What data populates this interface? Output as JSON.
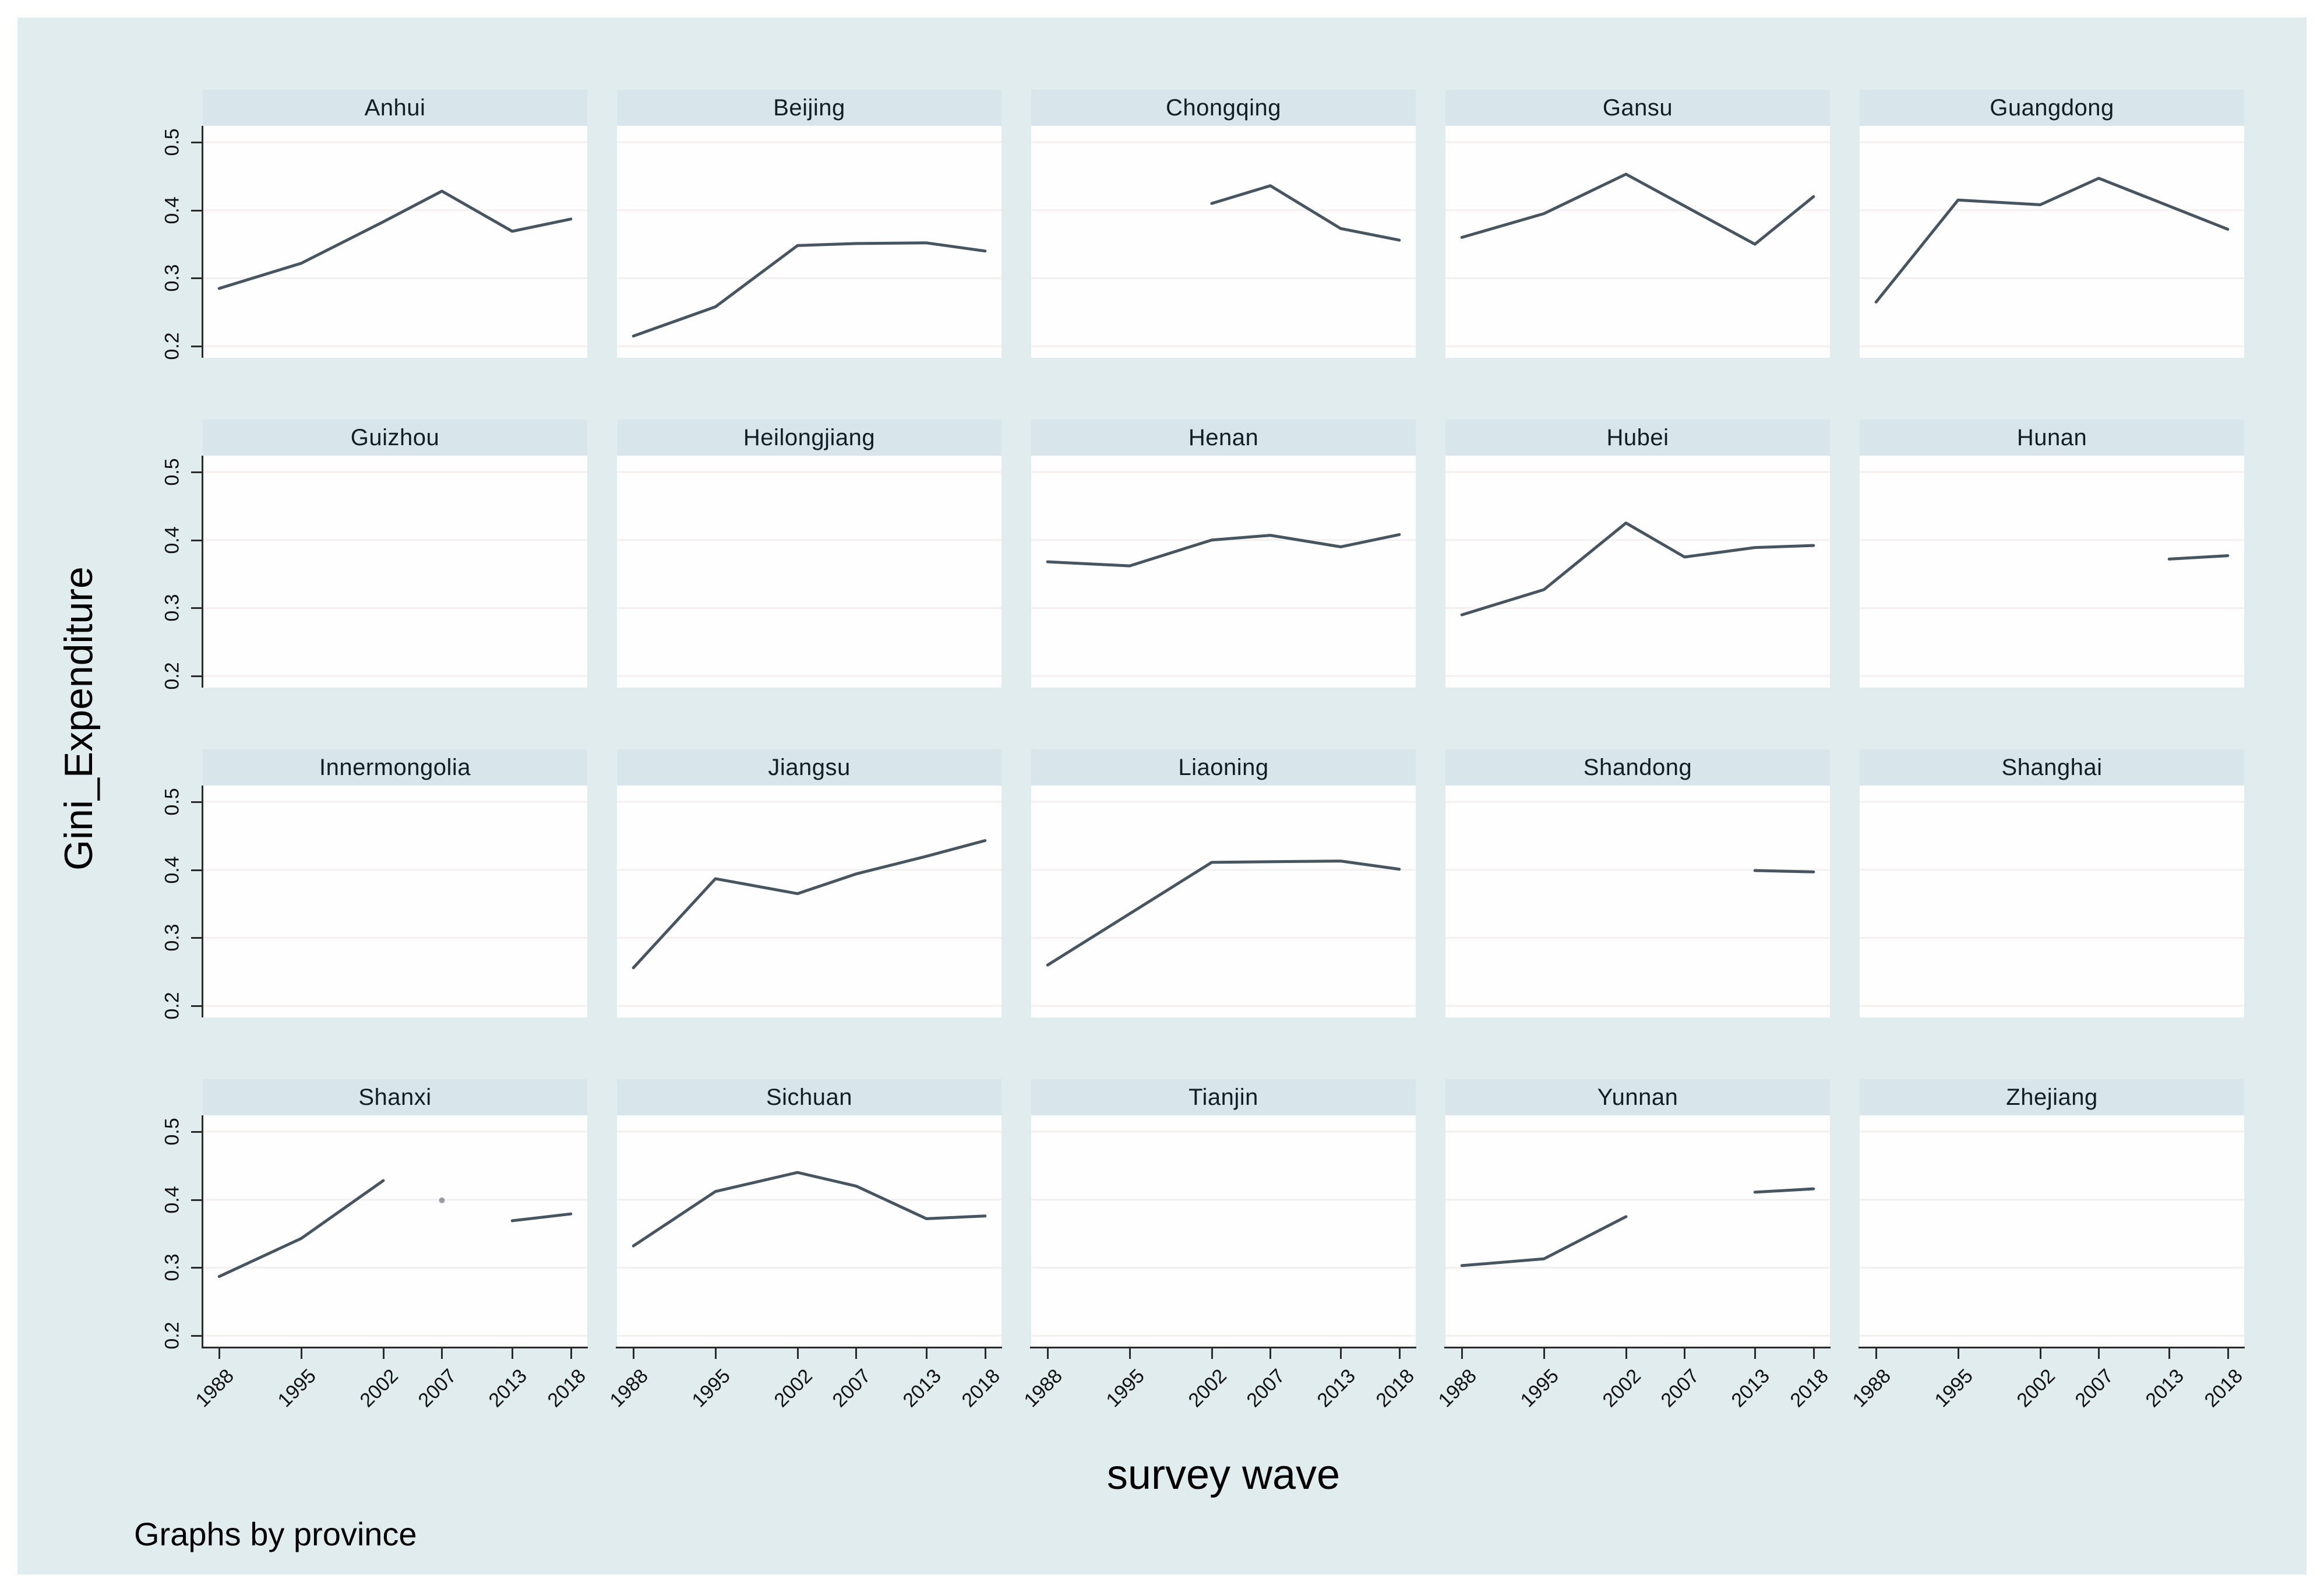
{
  "chart_data": {
    "type": "line",
    "title": "",
    "ylabel": "Gini_Expenditure",
    "xlabel": "survey wave",
    "note": "Graphs by province",
    "x_ticks": [
      1988,
      1995,
      2002,
      2007,
      2013,
      2018
    ],
    "x_tick_labels": [
      "1988",
      "1995",
      "2002",
      "2007",
      "2013",
      "2018"
    ],
    "y_ticks": [
      0.2,
      0.3,
      0.4,
      0.5
    ],
    "y_tick_labels": [
      "0.2",
      "0.3",
      "0.4",
      "0.5"
    ],
    "xlim": [
      1986.6,
      2019.4
    ],
    "ylim": [
      0.183,
      0.524
    ],
    "grid": "horizontal-only",
    "layout": {
      "rows": 4,
      "cols": 5,
      "shared_y_axis_left_column": true,
      "shared_x_axis_bottom_row": true
    },
    "series": [
      {
        "name": "Anhui",
        "segments": [
          [
            [
              1988,
              0.285
            ],
            [
              1995,
              0.322
            ],
            [
              2002,
              0.383
            ],
            [
              2007,
              0.428
            ],
            [
              2013,
              0.369
            ],
            [
              2018,
              0.387
            ]
          ]
        ]
      },
      {
        "name": "Beijing",
        "segments": [
          [
            [
              1988,
              0.215
            ],
            [
              1995,
              0.258
            ],
            [
              2002,
              0.348
            ],
            [
              2007,
              0.351
            ],
            [
              2013,
              0.352
            ],
            [
              2018,
              0.34
            ]
          ]
        ]
      },
      {
        "name": "Chongqing",
        "segments": [
          [
            [
              2002,
              0.41
            ],
            [
              2007,
              0.436
            ],
            [
              2013,
              0.373
            ],
            [
              2018,
              0.356
            ]
          ]
        ]
      },
      {
        "name": "Gansu",
        "segments": [
          [
            [
              1988,
              0.36
            ],
            [
              1995,
              0.395
            ],
            [
              2002,
              0.453
            ],
            [
              2013,
              0.35
            ],
            [
              2018,
              0.42
            ]
          ]
        ]
      },
      {
        "name": "Guangdong",
        "segments": [
          [
            [
              1988,
              0.265
            ],
            [
              1995,
              0.415
            ],
            [
              2002,
              0.408
            ],
            [
              2007,
              0.447
            ],
            [
              2018,
              0.372
            ]
          ]
        ]
      },
      {
        "name": "Guizhou",
        "segments": []
      },
      {
        "name": "Heilongjiang",
        "segments": []
      },
      {
        "name": "Henan",
        "segments": [
          [
            [
              1988,
              0.368
            ],
            [
              1995,
              0.362
            ],
            [
              2002,
              0.4
            ],
            [
              2007,
              0.407
            ],
            [
              2013,
              0.39
            ],
            [
              2018,
              0.408
            ]
          ]
        ]
      },
      {
        "name": "Hubei",
        "segments": [
          [
            [
              1988,
              0.29
            ],
            [
              1995,
              0.327
            ],
            [
              2002,
              0.425
            ],
            [
              2007,
              0.375
            ],
            [
              2013,
              0.389
            ],
            [
              2018,
              0.392
            ]
          ]
        ]
      },
      {
        "name": "Hunan",
        "segments": [
          [
            [
              2013,
              0.372
            ],
            [
              2018,
              0.377
            ]
          ]
        ]
      },
      {
        "name": "Innermongolia",
        "segments": []
      },
      {
        "name": "Jiangsu",
        "segments": [
          [
            [
              1988,
              0.256
            ],
            [
              1995,
              0.387
            ],
            [
              2002,
              0.365
            ],
            [
              2007,
              0.394
            ],
            [
              2013,
              0.42
            ],
            [
              2018,
              0.443
            ]
          ]
        ]
      },
      {
        "name": "Liaoning",
        "segments": [
          [
            [
              1988,
              0.26
            ],
            [
              2002,
              0.411
            ],
            [
              2007,
              0.412
            ],
            [
              2013,
              0.413
            ],
            [
              2018,
              0.401
            ]
          ]
        ]
      },
      {
        "name": "Shandong",
        "segments": [
          [
            [
              2013,
              0.399
            ],
            [
              2018,
              0.397
            ]
          ]
        ]
      },
      {
        "name": "Shanghai",
        "segments": []
      },
      {
        "name": "Shanxi",
        "segments": [
          [
            [
              1988,
              0.287
            ],
            [
              1995,
              0.343
            ],
            [
              2002,
              0.428
            ]
          ],
          [
            [
              2007,
              0.399
            ]
          ],
          [
            [
              2013,
              0.369
            ],
            [
              2018,
              0.379
            ]
          ]
        ]
      },
      {
        "name": "Sichuan",
        "segments": [
          [
            [
              1988,
              0.332
            ],
            [
              1995,
              0.412
            ],
            [
              2002,
              0.44
            ],
            [
              2007,
              0.42
            ],
            [
              2013,
              0.372
            ],
            [
              2018,
              0.376
            ]
          ]
        ]
      },
      {
        "name": "Tianjin",
        "segments": []
      },
      {
        "name": "Yunnan",
        "segments": [
          [
            [
              1988,
              0.303
            ],
            [
              1995,
              0.313
            ],
            [
              2002,
              0.375
            ]
          ],
          [
            [
              2013,
              0.411
            ],
            [
              2018,
              0.416
            ]
          ]
        ]
      },
      {
        "name": "Zhejiang",
        "segments": []
      }
    ]
  },
  "colors": {
    "page_background": "#ffffff",
    "canvas_background": "#e0ecee",
    "panel_title_background": "#d8e5ea",
    "plot_background": "#fefefe",
    "gridline": "#f3f0ef",
    "line": "#46555f",
    "axis": "#2a2a2a",
    "text": "#111111"
  }
}
